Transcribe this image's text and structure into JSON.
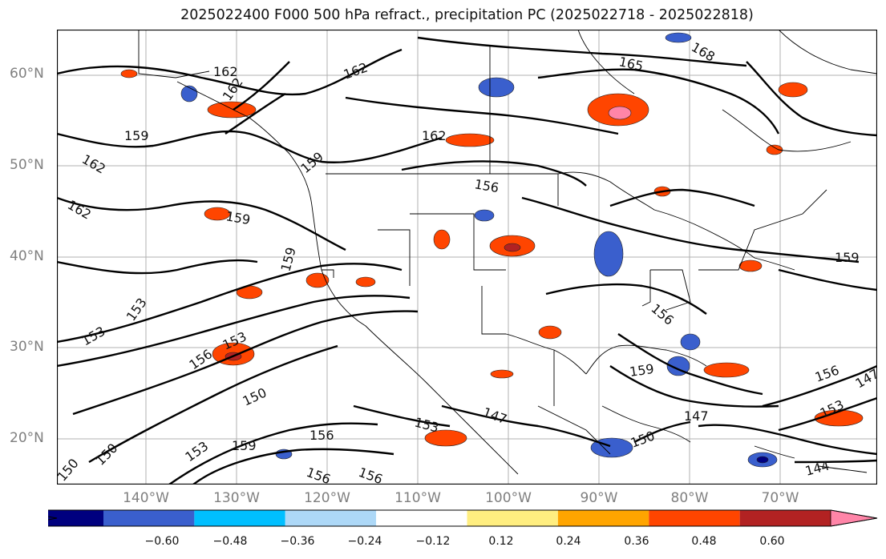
{
  "title": "2025022400 F000 500 hPa refract., precipitation PC (2025022718 - 2025022818)",
  "axes": {
    "lat_labels": [
      "60°N",
      "50°N",
      "40°N",
      "30°N",
      "20°N"
    ],
    "lon_labels": [
      "140°W",
      "130°W",
      "120°W",
      "110°W",
      "100°W",
      "90°W",
      "80°W",
      "70°W"
    ]
  },
  "contour_labels": [
    "168",
    "165",
    "162",
    "162",
    "162",
    "162",
    "159",
    "162",
    "159",
    "162",
    "159",
    "156",
    "159",
    "159",
    "153",
    "153",
    "156",
    "153",
    "150",
    "150",
    "150",
    "153",
    "159",
    "156",
    "156",
    "156",
    "153",
    "147",
    "150",
    "147",
    "159",
    "156",
    "156",
    "153",
    "144",
    "147"
  ],
  "colorbar": {
    "ticks": [
      "−0.60",
      "−0.48",
      "−0.36",
      "−0.24",
      "−0.12",
      "0.12",
      "0.24",
      "0.36",
      "0.48",
      "0.60"
    ],
    "colors": [
      "#9b30d9",
      "#00007f",
      "#3a5fcd",
      "#00bfff",
      "#add8f7",
      "#ffffff",
      "#ffee80",
      "#ffa500",
      "#ff4500",
      "#b22222",
      "#ff85a8"
    ]
  }
}
